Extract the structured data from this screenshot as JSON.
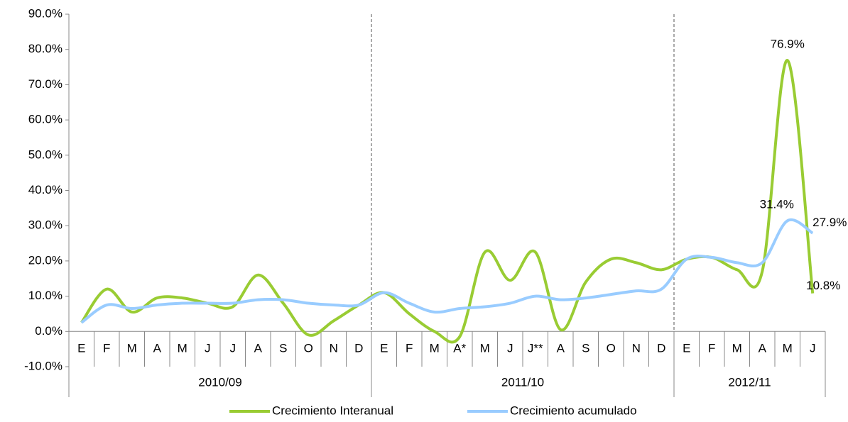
{
  "chart_data": {
    "type": "line",
    "categories": [
      "E",
      "F",
      "M",
      "A",
      "M",
      "J",
      "J",
      "A",
      "S",
      "O",
      "N",
      "D",
      "E",
      "F",
      "M",
      "A*",
      "M",
      "J",
      "J**",
      "A",
      "S",
      "O",
      "N",
      "D",
      "E",
      "F",
      "M",
      "A",
      "M",
      "J"
    ],
    "groups": [
      {
        "label": "2010/09",
        "count": 12
      },
      {
        "label": "2011/10",
        "count": 12
      },
      {
        "label": "2012/11",
        "count": 6
      }
    ],
    "series": [
      {
        "name": "Crecimiento Interanual",
        "color": "#99cc33",
        "values": [
          2.5,
          12,
          5.5,
          9.5,
          9.5,
          8,
          7,
          16,
          8,
          -1,
          3,
          7.5,
          11,
          5,
          0,
          -1.5,
          22.5,
          14.5,
          22.5,
          0.5,
          14,
          20.5,
          19.5,
          17.5,
          20.5,
          21,
          17.5,
          17,
          76.9,
          10.8
        ],
        "value_labels": [
          null,
          null,
          null,
          null,
          null,
          null,
          null,
          null,
          null,
          null,
          null,
          null,
          null,
          null,
          null,
          null,
          null,
          null,
          null,
          null,
          null,
          null,
          null,
          null,
          null,
          null,
          null,
          null,
          "76.9%",
          "10.8%"
        ]
      },
      {
        "name": "Crecimiento acumulado",
        "color": "#99ccff",
        "values": [
          2.5,
          7.5,
          6.5,
          7.5,
          8,
          8,
          8,
          9,
          9,
          8,
          7.5,
          7.5,
          11,
          8,
          5.5,
          6.5,
          7,
          8,
          10,
          9,
          9.5,
          10.5,
          11.5,
          12,
          20.5,
          21,
          19.5,
          19.5,
          31.4,
          27.9
        ],
        "value_labels": [
          null,
          null,
          null,
          null,
          null,
          null,
          null,
          null,
          null,
          null,
          null,
          null,
          null,
          null,
          null,
          null,
          null,
          null,
          null,
          null,
          null,
          null,
          null,
          null,
          null,
          null,
          null,
          null,
          "31.4%",
          "27.9%"
        ]
      }
    ],
    "ylim": [
      -10,
      90
    ],
    "yticks": [
      {
        "value": -10,
        "label": "-10.0%"
      },
      {
        "value": 0,
        "label": "0.0%"
      },
      {
        "value": 10,
        "label": "10.0%"
      },
      {
        "value": 20,
        "label": "20.0%"
      },
      {
        "value": 30,
        "label": "30.0%"
      },
      {
        "value": 40,
        "label": "40.0%"
      },
      {
        "value": 50,
        "label": "50.0%"
      },
      {
        "value": 60,
        "label": "60.0%"
      },
      {
        "value": 70,
        "label": "70.0%"
      },
      {
        "value": 80,
        "label": "80.0%"
      },
      {
        "value": 90,
        "label": "90.0%"
      }
    ],
    "legend": "bottom"
  }
}
